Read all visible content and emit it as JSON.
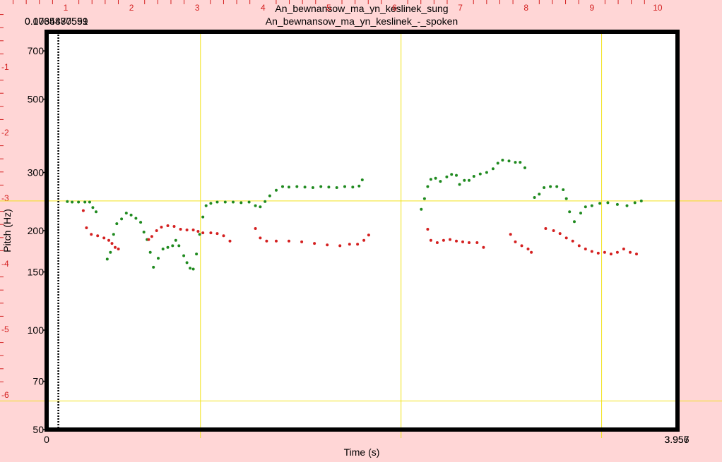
{
  "chart_data": {
    "type": "scatter",
    "title_lines": [
      "An_bewnansow_ma_yn_keslinek_sung",
      "An_bewnansow_ma_yn_keslinek_-_spoken"
    ],
    "xlabel": "Time (s)",
    "ylabel": "Pitch (Hz)",
    "ylim": [
      50,
      800
    ],
    "y_scale": "log",
    "y_ticks": [
      50,
      70,
      100,
      150,
      200,
      300,
      500,
      700
    ],
    "x_ticks_bottom": [
      "0",
      "3.957"
    ],
    "x_end_overlap": "3.957",
    "x_end_overlap2": "3.956",
    "top_left_readout_a": "0.0735487559",
    "top_left_readout_b": "0.1064870591",
    "top_axis_ticks": [
      "1",
      "2",
      "3",
      "4",
      "5",
      "6",
      "7",
      "8",
      "9",
      "10"
    ],
    "left_axis_ticks": [
      "-1",
      "-2",
      "-3",
      "-4",
      "-5",
      "-6"
    ],
    "grid": {
      "yellow_h_hz": [
        246,
        61
      ],
      "yellow_v_s": [
        0.965,
        2.223,
        3.481
      ]
    },
    "cursor_s": 0.0735,
    "series": [
      {
        "color": "#1f8a1f",
        "points": [
          [
            0.13,
            245
          ],
          [
            0.16,
            244
          ],
          [
            0.2,
            244
          ],
          [
            0.24,
            244
          ],
          [
            0.27,
            244
          ],
          [
            0.29,
            235
          ],
          [
            0.31,
            228
          ],
          [
            0.38,
            164
          ],
          [
            0.4,
            172
          ],
          [
            0.42,
            195
          ],
          [
            0.44,
            210
          ],
          [
            0.47,
            217
          ],
          [
            0.5,
            226
          ],
          [
            0.53,
            223
          ],
          [
            0.56,
            218
          ],
          [
            0.59,
            212
          ],
          [
            0.61,
            198
          ],
          [
            0.63,
            188
          ],
          [
            0.65,
            172
          ],
          [
            0.67,
            155
          ],
          [
            0.7,
            165
          ],
          [
            0.73,
            176
          ],
          [
            0.76,
            178
          ],
          [
            0.79,
            180
          ],
          [
            0.81,
            187
          ],
          [
            0.83,
            180
          ],
          [
            0.86,
            168
          ],
          [
            0.88,
            160
          ],
          [
            0.9,
            154
          ],
          [
            0.92,
            153
          ],
          [
            0.94,
            170
          ],
          [
            0.96,
            195
          ],
          [
            0.98,
            220
          ],
          [
            1.0,
            238
          ],
          [
            1.03,
            242
          ],
          [
            1.07,
            244
          ],
          [
            1.12,
            244
          ],
          [
            1.17,
            244
          ],
          [
            1.22,
            243
          ],
          [
            1.27,
            244
          ],
          [
            1.31,
            238
          ],
          [
            1.34,
            236
          ],
          [
            1.37,
            245
          ],
          [
            1.4,
            255
          ],
          [
            1.44,
            265
          ],
          [
            1.48,
            272
          ],
          [
            1.52,
            271
          ],
          [
            1.57,
            272
          ],
          [
            1.62,
            271
          ],
          [
            1.67,
            270
          ],
          [
            1.72,
            272
          ],
          [
            1.77,
            271
          ],
          [
            1.82,
            270
          ],
          [
            1.87,
            272
          ],
          [
            1.92,
            271
          ],
          [
            1.96,
            273
          ],
          [
            1.98,
            285
          ],
          [
            2.35,
            232
          ],
          [
            2.37,
            250
          ],
          [
            2.39,
            272
          ],
          [
            2.41,
            286
          ],
          [
            2.44,
            288
          ],
          [
            2.47,
            282
          ],
          [
            2.51,
            291
          ],
          [
            2.54,
            296
          ],
          [
            2.57,
            294
          ],
          [
            2.59,
            276
          ],
          [
            2.62,
            284
          ],
          [
            2.65,
            284
          ],
          [
            2.68,
            292
          ],
          [
            2.72,
            297
          ],
          [
            2.76,
            300
          ],
          [
            2.8,
            308
          ],
          [
            2.83,
            320
          ],
          [
            2.86,
            327
          ],
          [
            2.9,
            325
          ],
          [
            2.94,
            322
          ],
          [
            2.97,
            322
          ],
          [
            3.0,
            310
          ],
          [
            3.06,
            252
          ],
          [
            3.09,
            258
          ],
          [
            3.12,
            270
          ],
          [
            3.16,
            272
          ],
          [
            3.2,
            272
          ],
          [
            3.24,
            266
          ],
          [
            3.26,
            250
          ],
          [
            3.28,
            228
          ],
          [
            3.31,
            213
          ],
          [
            3.35,
            226
          ],
          [
            3.38,
            236
          ],
          [
            3.42,
            238
          ],
          [
            3.47,
            242
          ],
          [
            3.52,
            243
          ],
          [
            3.58,
            240
          ],
          [
            3.64,
            238
          ],
          [
            3.69,
            243
          ],
          [
            3.73,
            246
          ]
        ]
      },
      {
        "color": "#d42020",
        "points": [
          [
            0.23,
            230
          ],
          [
            0.25,
            204
          ],
          [
            0.28,
            195
          ],
          [
            0.32,
            193
          ],
          [
            0.36,
            190
          ],
          [
            0.39,
            187
          ],
          [
            0.41,
            183
          ],
          [
            0.43,
            178
          ],
          [
            0.45,
            176
          ],
          [
            0.64,
            188
          ],
          [
            0.66,
            192
          ],
          [
            0.69,
            200
          ],
          [
            0.72,
            205
          ],
          [
            0.76,
            207
          ],
          [
            0.8,
            206
          ],
          [
            0.84,
            202
          ],
          [
            0.88,
            201
          ],
          [
            0.92,
            201
          ],
          [
            0.95,
            199
          ],
          [
            0.98,
            197
          ],
          [
            1.03,
            197
          ],
          [
            1.07,
            196
          ],
          [
            1.11,
            193
          ],
          [
            1.15,
            186
          ],
          [
            1.31,
            203
          ],
          [
            1.34,
            190
          ],
          [
            1.38,
            186
          ],
          [
            1.44,
            186
          ],
          [
            1.52,
            186
          ],
          [
            1.6,
            185
          ],
          [
            1.68,
            183
          ],
          [
            1.76,
            181
          ],
          [
            1.84,
            180
          ],
          [
            1.9,
            182
          ],
          [
            1.95,
            182
          ],
          [
            1.99,
            187
          ],
          [
            2.02,
            194
          ],
          [
            2.39,
            202
          ],
          [
            2.41,
            187
          ],
          [
            2.45,
            184
          ],
          [
            2.49,
            187
          ],
          [
            2.53,
            188
          ],
          [
            2.57,
            186
          ],
          [
            2.61,
            185
          ],
          [
            2.65,
            184
          ],
          [
            2.7,
            184
          ],
          [
            2.74,
            178
          ],
          [
            2.91,
            195
          ],
          [
            2.94,
            185
          ],
          [
            2.98,
            180
          ],
          [
            3.02,
            176
          ],
          [
            3.04,
            172
          ],
          [
            3.13,
            203
          ],
          [
            3.18,
            200
          ],
          [
            3.22,
            196
          ],
          [
            3.26,
            190
          ],
          [
            3.3,
            186
          ],
          [
            3.34,
            180
          ],
          [
            3.38,
            176
          ],
          [
            3.42,
            173
          ],
          [
            3.46,
            171
          ],
          [
            3.5,
            172
          ],
          [
            3.54,
            170
          ],
          [
            3.58,
            172
          ],
          [
            3.62,
            176
          ],
          [
            3.66,
            172
          ],
          [
            3.7,
            170
          ]
        ]
      }
    ]
  }
}
